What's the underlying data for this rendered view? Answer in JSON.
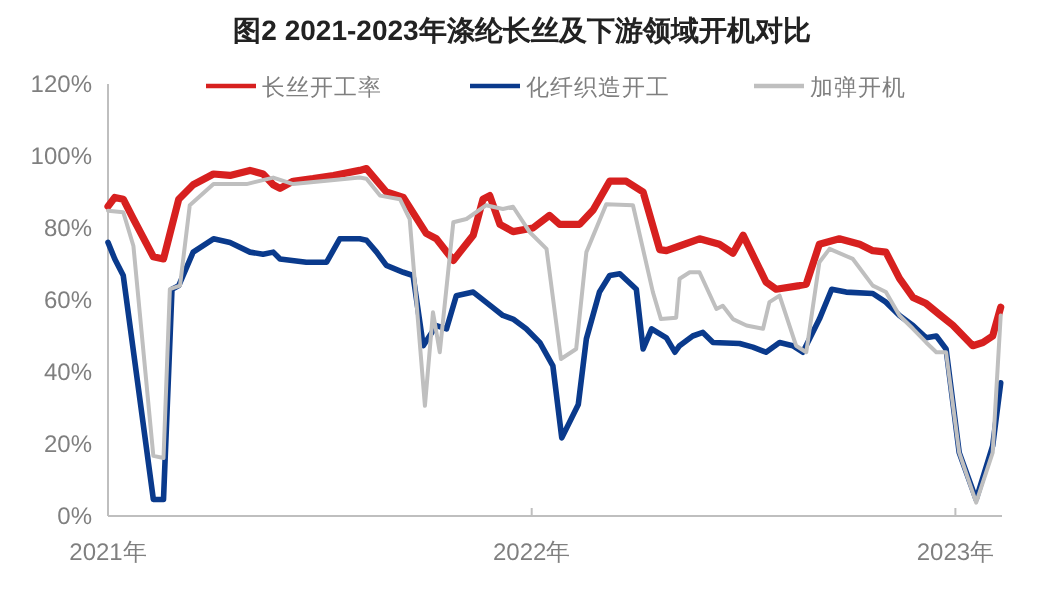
{
  "chart_data": {
    "type": "line",
    "title": "图2 2021-2023年涤纶长丝及下游领域开机对比",
    "xlim": [
      2021,
      2023.11
    ],
    "xticks": [
      {
        "value": 2021,
        "label": "2021年"
      },
      {
        "value": 2022,
        "label": "2022年"
      },
      {
        "value": 2023,
        "label": "2023年"
      }
    ],
    "ylim": [
      0,
      120
    ],
    "yticks": [
      {
        "value": 0,
        "label": "0%"
      },
      {
        "value": 20,
        "label": "20%"
      },
      {
        "value": 40,
        "label": "40%"
      },
      {
        "value": 60,
        "label": "60%"
      },
      {
        "value": 80,
        "label": "80%"
      },
      {
        "value": 100,
        "label": "100%"
      },
      {
        "value": 120,
        "label": "120%"
      }
    ],
    "grid": false,
    "legend": "top",
    "marker": "none",
    "line_style": "solid",
    "series": [
      {
        "name": "长丝开工率",
        "color": "#d7201f",
        "x": [
          2021.0,
          2021.016,
          2021.036,
          2021.06,
          2021.107,
          2021.131,
          2021.167,
          2021.201,
          2021.249,
          2021.288,
          2021.335,
          2021.366,
          2021.39,
          2021.406,
          2021.437,
          2021.484,
          2021.532,
          2021.594,
          2021.61,
          2021.657,
          2021.697,
          2021.751,
          2021.775,
          2021.815,
          2021.862,
          2021.885,
          2021.901,
          2021.925,
          2021.956,
          2022.003,
          2022.042,
          2022.066,
          2022.113,
          2022.145,
          2022.184,
          2022.223,
          2022.263,
          2022.302,
          2022.318,
          2022.349,
          2022.396,
          2022.443,
          2022.475,
          2022.499,
          2022.553,
          2022.577,
          2022.632,
          2022.648,
          2022.679,
          2022.726,
          2022.774,
          2022.805,
          2022.836,
          2022.868,
          2022.9,
          2022.931,
          2022.962,
          2022.994,
          2023.041,
          2023.065,
          2023.088,
          2023.107
        ],
        "values": [
          86,
          88.5,
          88,
          82.5,
          72,
          71.4,
          88,
          92,
          95,
          94.6,
          96,
          95,
          92,
          91,
          93,
          93.7,
          94.6,
          96,
          96.5,
          90,
          88.5,
          78.5,
          77,
          71,
          78,
          88,
          89,
          81,
          79,
          80,
          83.5,
          81,
          81,
          85,
          93,
          93,
          90,
          74,
          73.7,
          75,
          77,
          75.5,
          73,
          78,
          65,
          63,
          64,
          64.4,
          75.5,
          77,
          75.5,
          73.7,
          73.3,
          66,
          60.7,
          59,
          56,
          53,
          47.3,
          48.2,
          50,
          58
        ]
      },
      {
        "name": "化纤织造开工",
        "color": "#0a3a8c",
        "x": [
          2021.0,
          2021.016,
          2021.036,
          2021.107,
          2021.131,
          2021.151,
          2021.167,
          2021.201,
          2021.249,
          2021.288,
          2021.335,
          2021.366,
          2021.39,
          2021.406,
          2021.468,
          2021.516,
          2021.547,
          2021.594,
          2021.61,
          2021.634,
          2021.657,
          2021.697,
          2021.72,
          2021.744,
          2021.775,
          2021.799,
          2021.822,
          2021.862,
          2021.892,
          2021.932,
          2021.956,
          2021.987,
          2022.019,
          2022.05,
          2022.071,
          2022.11,
          2022.129,
          2022.16,
          2022.184,
          2022.208,
          2022.247,
          2022.263,
          2022.283,
          2022.318,
          2022.338,
          2022.349,
          2022.38,
          2022.404,
          2022.428,
          2022.491,
          2022.522,
          2022.553,
          2022.585,
          2022.616,
          2022.64,
          2022.679,
          2022.708,
          2022.742,
          2022.805,
          2022.836,
          2022.868,
          2022.9,
          2022.931,
          2022.955,
          2022.978,
          2023.009,
          2023.049,
          2023.088,
          2023.107
        ],
        "values": [
          76,
          71.4,
          66.8,
          4.6,
          4.6,
          63,
          64,
          73.3,
          77,
          76,
          73.3,
          72.7,
          73.3,
          71.4,
          70.5,
          70.5,
          77,
          77,
          76.6,
          73.3,
          69.6,
          67.7,
          66.8,
          47.3,
          52.9,
          52,
          61.2,
          62.2,
          59.4,
          55.7,
          54.7,
          52,
          48.2,
          41.7,
          21.7,
          31,
          49.2,
          62.2,
          66.8,
          67.3,
          63,
          46.4,
          52,
          49.5,
          45.5,
          47.3,
          50,
          51,
          48.2,
          47.9,
          46.9,
          45.5,
          48.2,
          47.3,
          45.5,
          54.7,
          63,
          62.2,
          61.8,
          59.4,
          55.7,
          52.9,
          49.5,
          50,
          46.4,
          17.6,
          4.6,
          19.5,
          37
        ]
      },
      {
        "name": "加弹开机",
        "color": "#bfbfbf",
        "x": [
          2021.0,
          2021.036,
          2021.06,
          2021.107,
          2021.131,
          2021.146,
          2021.17,
          2021.193,
          2021.249,
          2021.327,
          2021.39,
          2021.437,
          2021.594,
          2021.61,
          2021.642,
          2021.689,
          2021.712,
          2021.748,
          2021.767,
          2021.783,
          2021.815,
          2021.846,
          2021.892,
          2021.932,
          2021.956,
          2021.995,
          2022.035,
          2022.069,
          2022.105,
          2022.129,
          2022.176,
          2022.239,
          2022.286,
          2022.305,
          2022.341,
          2022.349,
          2022.373,
          2022.396,
          2022.436,
          2022.451,
          2022.475,
          2022.507,
          2022.546,
          2022.561,
          2022.585,
          2022.624,
          2022.648,
          2022.679,
          2022.703,
          2022.758,
          2022.805,
          2022.836,
          2022.868,
          2022.9,
          2022.931,
          2022.955,
          2022.978,
          2023.009,
          2023.049,
          2023.088,
          2023.107
        ],
        "values": [
          84.8,
          84.4,
          75,
          16.7,
          16.1,
          63,
          64,
          86.3,
          92.2,
          92.2,
          94,
          92.2,
          94,
          93.7,
          89,
          88,
          82.5,
          30.6,
          56.6,
          45.5,
          81.6,
          82.5,
          86.3,
          85.3,
          85.9,
          78.9,
          74.2,
          43.6,
          46.4,
          73.3,
          86.6,
          86.3,
          62.2,
          54.7,
          55.1,
          65.9,
          67.7,
          67.7,
          57.5,
          58.4,
          54.7,
          52.9,
          52,
          59.4,
          61.2,
          47.3,
          45.5,
          70.5,
          74.2,
          71.4,
          64,
          62.2,
          55.7,
          52,
          48.2,
          45.5,
          45.5,
          17.6,
          3.7,
          17.6,
          55.7
        ]
      }
    ]
  }
}
